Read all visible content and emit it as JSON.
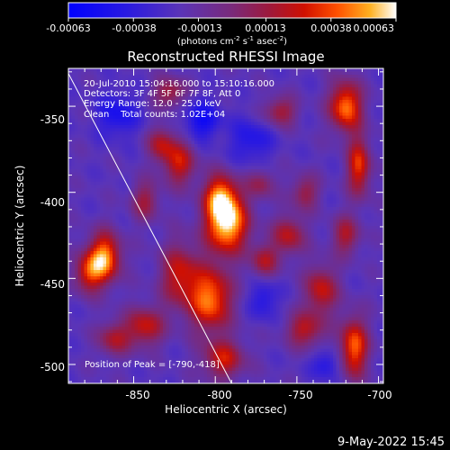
{
  "chart_data": {
    "type": "heatmap",
    "title": "Reconstructed RHESSI Image",
    "xlabel": "Heliocentric X (arcsec)",
    "ylabel": "Heliocentric Y (arcsec)",
    "xlim": [
      -890,
      -697
    ],
    "ylim": [
      -511,
      -328
    ],
    "x_ticks": [
      -850,
      -800,
      -750,
      -700
    ],
    "y_ticks": [
      -350,
      -400,
      -450,
      -500
    ],
    "colorbar": {
      "min": -0.00063,
      "max": 0.00063,
      "tick_values": [
        -0.00063,
        -0.00038,
        -0.00013,
        0.00013,
        0.00038,
        0.00063
      ],
      "tick_labels": [
        "-0.00063",
        "-0.00038",
        "-0.00013",
        "0.00013",
        "0.00038",
        "0.00063"
      ],
      "unit_parts": [
        "(photons cm",
        "-2",
        " s",
        "-1",
        " asec",
        "-2",
        ")"
      ]
    },
    "annotations": [
      "20-Jul-2010 15:04:16.000 to 15:10:16.000",
      "Detectors: 3F 4F 5F 6F 7F 8F, Att 0",
      "Energy Range: 12.0 - 25.0 keV",
      "Clean    Total counts: 1.02E+04"
    ],
    "peak_label": "Position of Peak = [-790,-418]",
    "peak": [
      -790,
      -418
    ],
    "limb_line": [
      [
        -890,
        -331
      ],
      [
        -790,
        -511
      ]
    ],
    "sources": [
      {
        "x": -793,
        "y": -418,
        "amp": 1.0,
        "sx": 9,
        "sy": 12
      },
      {
        "x": -797,
        "y": -402,
        "amp": 0.65,
        "sx": 7,
        "sy": 9
      },
      {
        "x": -803,
        "y": -462,
        "amp": 0.8,
        "sx": 9,
        "sy": 13
      },
      {
        "x": -822,
        "y": -448,
        "amp": 0.55,
        "sx": 8,
        "sy": 13
      },
      {
        "x": -795,
        "y": -497,
        "amp": 0.55,
        "sx": 9,
        "sy": 8
      },
      {
        "x": -868,
        "y": -438,
        "amp": 0.85,
        "sx": 7,
        "sy": 10
      },
      {
        "x": -878,
        "y": -447,
        "amp": 0.55,
        "sx": 6,
        "sy": 8
      },
      {
        "x": -822,
        "y": -383,
        "amp": 0.55,
        "sx": 7,
        "sy": 9
      },
      {
        "x": -833,
        "y": -372,
        "amp": 0.45,
        "sx": 6,
        "sy": 7
      },
      {
        "x": -843,
        "y": -405,
        "amp": 0.4,
        "sx": 6,
        "sy": 8
      },
      {
        "x": -720,
        "y": -350,
        "amp": 0.8,
        "sx": 7,
        "sy": 10
      },
      {
        "x": -712,
        "y": -385,
        "amp": 0.65,
        "sx": 5,
        "sy": 12
      },
      {
        "x": -760,
        "y": -353,
        "amp": 0.45,
        "sx": 7,
        "sy": 6
      },
      {
        "x": -755,
        "y": -425,
        "amp": 0.5,
        "sx": 7,
        "sy": 8
      },
      {
        "x": -770,
        "y": -440,
        "amp": 0.45,
        "sx": 6,
        "sy": 7
      },
      {
        "x": -735,
        "y": -457,
        "amp": 0.55,
        "sx": 7,
        "sy": 10
      },
      {
        "x": -745,
        "y": -480,
        "amp": 0.5,
        "sx": 8,
        "sy": 7
      },
      {
        "x": -715,
        "y": -490,
        "amp": 0.75,
        "sx": 6,
        "sy": 12
      },
      {
        "x": -720,
        "y": -425,
        "amp": 0.45,
        "sx": 6,
        "sy": 8
      },
      {
        "x": -843,
        "y": -478,
        "amp": 0.55,
        "sx": 8,
        "sy": 8
      },
      {
        "x": -862,
        "y": -485,
        "amp": 0.45,
        "sx": 7,
        "sy": 7
      },
      {
        "x": -828,
        "y": -342,
        "amp": 0.45,
        "sx": 7,
        "sy": 6
      },
      {
        "x": -772,
        "y": -395,
        "amp": 0.35,
        "sx": 6,
        "sy": 6
      },
      {
        "x": -745,
        "y": -400,
        "amp": 0.4,
        "sx": 6,
        "sy": 7
      },
      {
        "x": -860,
        "y": -355,
        "amp": -0.35,
        "sx": 9,
        "sy": 9
      },
      {
        "x": -808,
        "y": -358,
        "amp": -0.4,
        "sx": 8,
        "sy": 8
      },
      {
        "x": -778,
        "y": -370,
        "amp": -0.3,
        "sx": 9,
        "sy": 9
      },
      {
        "x": -770,
        "y": -462,
        "amp": -0.3,
        "sx": 6,
        "sy": 8
      },
      {
        "x": -732,
        "y": -500,
        "amp": -0.3,
        "sx": 6,
        "sy": 6
      }
    ]
  },
  "footer": {
    "date": "9-May-2022 15:45"
  }
}
